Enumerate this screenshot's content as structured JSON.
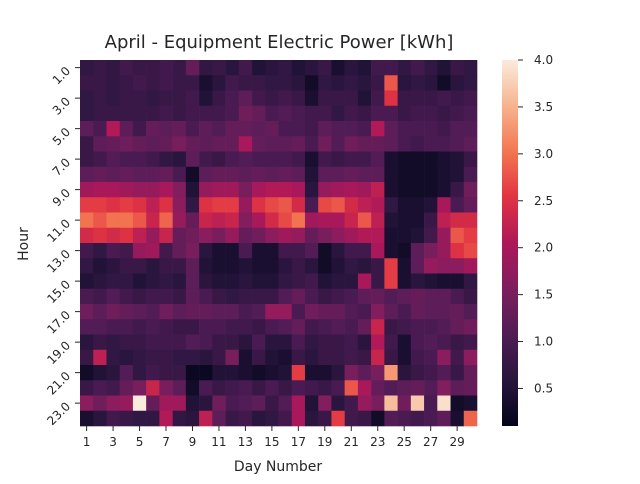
{
  "chart_data": {
    "type": "heatmap",
    "title": "April - Equipment Electric Power [kWh]",
    "xlabel": "Day Number",
    "ylabel": "Hour",
    "x_tick_labels": [
      "1",
      "3",
      "5",
      "7",
      "9",
      "11",
      "13",
      "15",
      "17",
      "19",
      "21",
      "23",
      "25",
      "27",
      "29"
    ],
    "y_tick_labels": [
      "1.0",
      "3.0",
      "5.0",
      "7.0",
      "9.0",
      "11.0",
      "13.0",
      "15.0",
      "17.0",
      "19.0",
      "21.0",
      "23.0"
    ],
    "colorbar": {
      "min": 0.1,
      "max": 4.0,
      "ticks": [
        "0.5",
        "1.0",
        "1.5",
        "2.0",
        "2.5",
        "3.0",
        "3.5",
        "4.0"
      ],
      "colormap": "rocket"
    },
    "days": [
      1,
      2,
      3,
      4,
      5,
      6,
      7,
      8,
      9,
      10,
      11,
      12,
      13,
      14,
      15,
      16,
      17,
      18,
      19,
      20,
      21,
      22,
      23,
      24,
      25,
      26,
      27,
      28,
      29,
      30
    ],
    "hours": [
      1,
      2,
      3,
      4,
      5,
      6,
      7,
      8,
      9,
      10,
      11,
      12,
      13,
      14,
      15,
      16,
      17,
      18,
      19,
      20,
      21,
      22,
      23,
      24
    ],
    "values": [
      [
        0.7,
        0.8,
        0.7,
        0.9,
        0.8,
        0.8,
        0.9,
        0.8,
        1.3,
        0.7,
        0.8,
        0.6,
        0.9,
        0.5,
        0.6,
        0.7,
        0.5,
        0.6,
        0.8,
        0.4,
        0.6,
        0.5,
        0.9,
        0.9,
        0.7,
        0.9,
        0.7,
        0.5,
        0.8,
        0.7
      ],
      [
        0.8,
        0.8,
        0.7,
        0.8,
        0.9,
        0.8,
        0.9,
        0.8,
        0.8,
        0.4,
        0.6,
        0.9,
        0.8,
        0.8,
        0.7,
        0.7,
        0.6,
        0.3,
        0.7,
        0.6,
        0.7,
        0.6,
        0.8,
        2.8,
        0.6,
        0.7,
        0.6,
        0.3,
        0.6,
        0.7
      ],
      [
        0.7,
        0.8,
        0.7,
        0.8,
        0.8,
        0.7,
        0.8,
        0.8,
        0.9,
        0.5,
        0.8,
        1.0,
        1.2,
        0.9,
        0.8,
        0.9,
        0.8,
        0.4,
        0.8,
        0.8,
        0.8,
        0.5,
        0.9,
        2.5,
        0.8,
        0.8,
        0.8,
        0.9,
        0.8,
        0.9
      ],
      [
        0.7,
        0.8,
        0.8,
        0.8,
        0.8,
        0.8,
        0.9,
        0.8,
        0.9,
        0.9,
        0.9,
        1.0,
        1.4,
        1.3,
        1.0,
        1.1,
        1.0,
        0.9,
        0.9,
        0.7,
        0.9,
        0.8,
        1.0,
        1.0,
        0.8,
        0.9,
        0.9,
        0.8,
        0.9,
        1.0
      ],
      [
        1.2,
        1.0,
        2.1,
        1.2,
        0.9,
        1.3,
        1.2,
        1.3,
        1.0,
        1.2,
        1.1,
        1.3,
        1.3,
        1.2,
        1.3,
        1.0,
        1.0,
        0.9,
        1.2,
        1.1,
        1.1,
        1.0,
        2.1,
        1.2,
        1.0,
        1.0,
        1.0,
        0.9,
        1.1,
        1.1
      ],
      [
        0.8,
        1.2,
        1.3,
        1.4,
        1.3,
        1.2,
        1.3,
        1.5,
        1.3,
        1.2,
        1.3,
        1.3,
        2.0,
        1.3,
        1.2,
        1.2,
        1.3,
        1.0,
        1.4,
        1.1,
        1.4,
        1.3,
        1.3,
        1.2,
        1.0,
        0.9,
        1.0,
        1.0,
        1.1,
        1.2
      ],
      [
        0.8,
        0.9,
        1.1,
        1.0,
        1.0,
        0.9,
        0.7,
        0.6,
        1.2,
        0.9,
        0.8,
        1.0,
        1.1,
        1.0,
        1.0,
        1.0,
        0.9,
        0.4,
        0.9,
        0.8,
        0.9,
        0.9,
        1.1,
        0.4,
        0.3,
        0.3,
        0.3,
        0.4,
        0.5,
        0.8
      ],
      [
        1.2,
        1.3,
        1.2,
        1.3,
        1.2,
        1.2,
        1.3,
        1.0,
        0.3,
        1.2,
        1.3,
        1.3,
        1.2,
        1.3,
        1.2,
        1.3,
        1.2,
        0.5,
        1.2,
        1.2,
        1.3,
        1.2,
        1.2,
        0.4,
        0.3,
        0.3,
        0.3,
        0.4,
        0.5,
        1.0
      ],
      [
        1.9,
        2.0,
        2.0,
        1.9,
        1.8,
        1.8,
        2.0,
        1.6,
        0.5,
        1.8,
        1.9,
        1.9,
        1.5,
        2.0,
        2.1,
        2.1,
        2.0,
        0.6,
        1.8,
        1.9,
        2.0,
        1.9,
        2.2,
        0.4,
        0.3,
        0.3,
        0.3,
        0.4,
        0.8,
        1.4
      ],
      [
        2.6,
        2.6,
        2.5,
        2.6,
        2.5,
        2.2,
        2.5,
        1.7,
        0.7,
        2.5,
        2.6,
        2.6,
        1.8,
        2.5,
        2.7,
        2.8,
        2.4,
        1.0,
        2.7,
        2.8,
        2.4,
        2.2,
        2.1,
        0.7,
        0.4,
        0.4,
        0.5,
        2.0,
        1.0,
        1.3
      ],
      [
        3.0,
        2.8,
        3.0,
        3.0,
        2.8,
        2.3,
        2.9,
        1.8,
        1.3,
        2.3,
        2.2,
        2.3,
        1.6,
        2.0,
        2.4,
        2.7,
        3.0,
        1.9,
        2.0,
        2.0,
        2.3,
        2.8,
        2.2,
        0.5,
        0.4,
        0.4,
        0.8,
        2.2,
        2.4,
        2.4
      ],
      [
        2.4,
        2.5,
        2.4,
        2.5,
        2.2,
        1.8,
        2.3,
        1.3,
        1.4,
        1.7,
        1.5,
        1.8,
        1.3,
        1.4,
        1.7,
        1.9,
        1.8,
        1.3,
        1.5,
        1.7,
        1.9,
        2.1,
        2.1,
        0.4,
        0.4,
        0.5,
        0.9,
        1.8,
        2.8,
        2.6
      ],
      [
        0.9,
        0.7,
        1.0,
        0.9,
        1.8,
        1.9,
        0.9,
        1.3,
        1.5,
        0.6,
        0.4,
        0.4,
        1.0,
        0.4,
        0.4,
        0.9,
        0.9,
        1.1,
        0.3,
        0.6,
        0.9,
        0.9,
        2.0,
        0.4,
        0.3,
        1.2,
        1.5,
        1.8,
        2.5,
        2.7
      ],
      [
        0.7,
        0.5,
        0.6,
        0.8,
        0.8,
        0.6,
        0.8,
        0.8,
        1.2,
        0.5,
        0.4,
        0.4,
        0.5,
        0.4,
        0.4,
        0.6,
        0.8,
        0.6,
        0.3,
        0.5,
        0.7,
        0.6,
        0.8,
        2.6,
        0.4,
        1.2,
        1.8,
        1.7,
        1.7,
        1.9
      ],
      [
        0.5,
        0.6,
        0.7,
        0.7,
        0.5,
        0.6,
        0.7,
        0.6,
        1.2,
        0.6,
        0.5,
        0.5,
        0.6,
        0.5,
        0.5,
        0.7,
        0.8,
        0.9,
        0.5,
        0.6,
        0.6,
        2.0,
        0.8,
        2.6,
        0.4,
        0.6,
        0.5,
        0.4,
        0.4,
        0.7
      ],
      [
        1.0,
        0.9,
        1.1,
        0.9,
        0.8,
        0.9,
        0.9,
        0.8,
        1.2,
        1.0,
        0.8,
        0.7,
        0.8,
        0.8,
        0.8,
        1.1,
        1.3,
        1.0,
        0.8,
        0.9,
        1.0,
        1.2,
        1.3,
        1.1,
        1.2,
        1.3,
        1.2,
        1.2,
        1.0,
        0.8
      ],
      [
        1.4,
        1.2,
        1.4,
        1.3,
        1.2,
        1.1,
        1.4,
        1.2,
        1.3,
        1.3,
        1.2,
        1.2,
        1.0,
        1.1,
        1.8,
        1.8,
        1.0,
        1.4,
        1.3,
        1.3,
        1.1,
        1.0,
        1.6,
        1.2,
        1.0,
        1.3,
        1.2,
        1.2,
        1.3,
        1.1
      ],
      [
        1.1,
        1.1,
        1.0,
        1.0,
        0.9,
        1.0,
        0.9,
        0.8,
        0.8,
        1.0,
        1.0,
        0.9,
        0.9,
        0.8,
        1.0,
        1.1,
        1.3,
        0.9,
        1.0,
        1.1,
        1.0,
        1.3,
        2.3,
        0.8,
        0.9,
        1.0,
        1.0,
        1.1,
        1.3,
        1.4
      ],
      [
        0.6,
        0.8,
        0.7,
        0.8,
        0.8,
        0.9,
        0.9,
        0.9,
        1.1,
        1.0,
        0.8,
        0.8,
        0.6,
        1.0,
        0.6,
        0.6,
        1.0,
        0.7,
        0.8,
        0.8,
        0.9,
        0.6,
        2.1,
        0.9,
        0.4,
        1.0,
        1.1,
        1.0,
        0.8,
        0.9
      ],
      [
        0.8,
        2.2,
        0.7,
        0.6,
        0.7,
        0.8,
        0.8,
        0.7,
        0.7,
        0.6,
        0.8,
        1.5,
        0.4,
        0.8,
        0.5,
        0.4,
        0.8,
        0.6,
        0.8,
        0.8,
        0.9,
        0.8,
        2.3,
        0.8,
        0.4,
        0.9,
        1.0,
        1.7,
        0.9,
        1.7
      ],
      [
        0.3,
        0.5,
        0.6,
        1.1,
        0.7,
        0.9,
        0.8,
        0.8,
        0.2,
        0.2,
        0.5,
        0.5,
        0.4,
        0.3,
        0.4,
        0.5,
        2.6,
        0.4,
        0.4,
        0.6,
        1.5,
        1.2,
        1.5,
        3.3,
        0.6,
        0.8,
        0.9,
        1.1,
        0.8,
        1.3
      ],
      [
        0.8,
        1.0,
        0.9,
        1.3,
        1.5,
        2.3,
        1.5,
        1.2,
        0.3,
        1.0,
        0.8,
        0.9,
        1.0,
        0.8,
        1.0,
        0.8,
        1.0,
        0.9,
        0.8,
        1.0,
        2.8,
        2.0,
        1.3,
        1.1,
        1.2,
        1.3,
        1.1,
        1.6,
        1.2,
        1.3
      ],
      [
        1.7,
        1.4,
        1.7,
        1.8,
        4.0,
        1.3,
        1.9,
        1.9,
        0.5,
        0.6,
        1.4,
        1.0,
        1.1,
        1.2,
        0.8,
        1.1,
        2.0,
        0.5,
        1.6,
        0.6,
        0.9,
        1.8,
        1.5,
        3.6,
        1.4,
        3.7,
        1.0,
        3.9,
        0.3,
        0.4
      ],
      [
        0.4,
        0.6,
        0.9,
        0.8,
        0.7,
        0.7,
        2.1,
        0.7,
        0.6,
        2.2,
        1.2,
        0.8,
        0.9,
        0.6,
        0.7,
        0.9,
        2.0,
        0.6,
        0.8,
        2.6,
        0.9,
        0.8,
        0.3,
        1.1,
        1.0,
        0.9,
        1.0,
        1.2,
        0.4,
        2.9
      ]
    ]
  }
}
